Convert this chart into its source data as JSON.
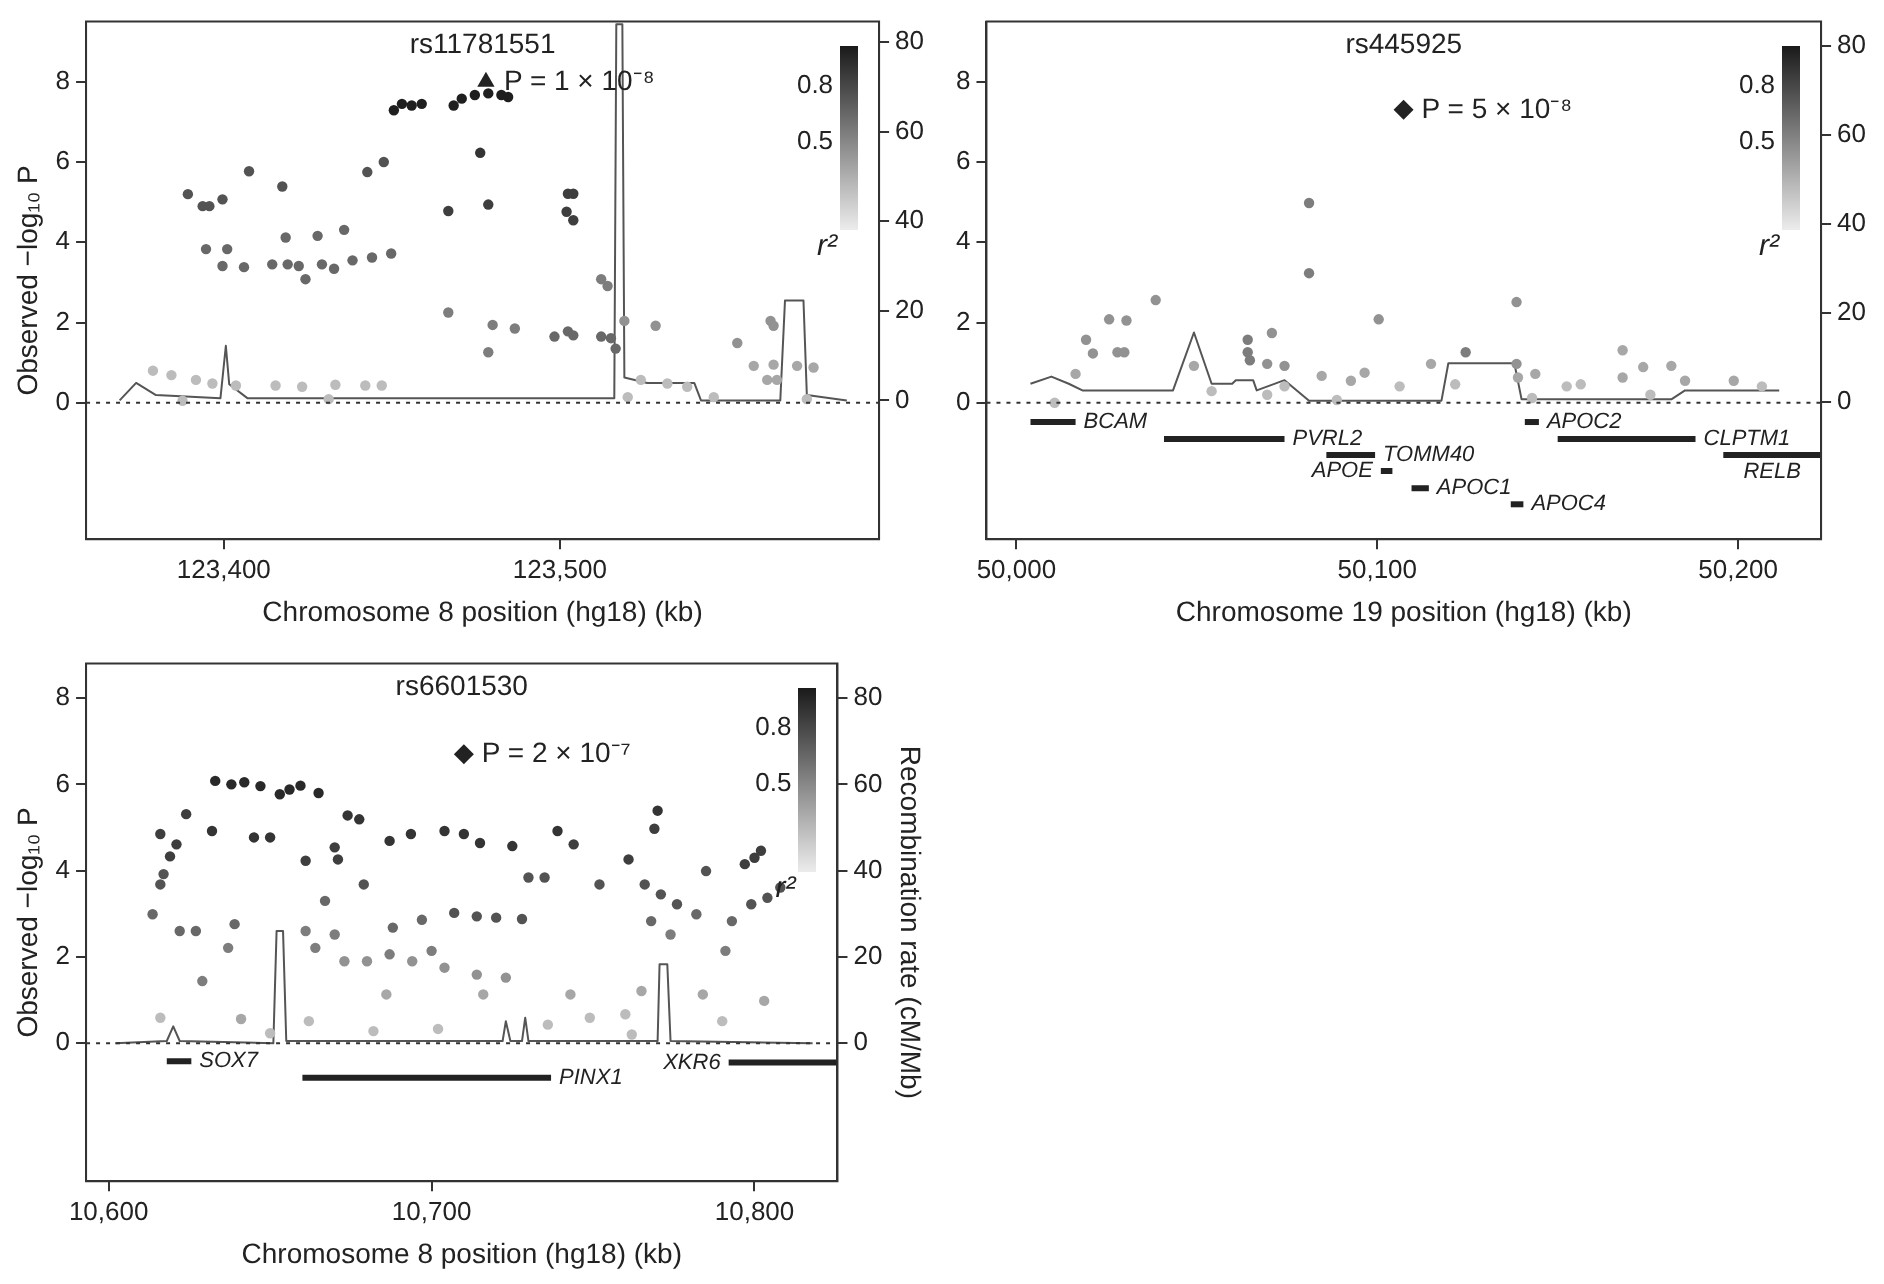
{
  "chart_data": [
    {
      "type": "scatter",
      "title": "rs11781551",
      "xlabel": "Chromosome 8 position (hg18) (kb)",
      "ylabel": "Observed −log₁₀ P",
      "annotations": [
        "0.8",
        "0.5",
        "r²"
      ],
      "xlim": [
        123359,
        123595
      ],
      "xticks": [
        {
          "value": 123400,
          "label": "123,400"
        },
        {
          "value": 123500,
          "label": "123,500"
        }
      ],
      "ylim": [
        -3.4,
        9.5
      ],
      "yticks": [
        0,
        2,
        4,
        6,
        8
      ],
      "y2lim": [
        -31,
        84.6
      ],
      "y2ticks": [
        0,
        20,
        40,
        60,
        80
      ],
      "ref_lines": [
        {
          "axis": "y",
          "value": 0,
          "line_style": "dotted"
        }
      ],
      "series": [
        {
          "type": "scatter",
          "marker": "circle",
          "x": [
            123389.3,
            123393.7,
            123395.7,
            123399.6,
            123407.5,
            123417.4,
            123394.7,
            123401,
            123399.6,
            123406,
            123414.4,
            123419,
            123422.3,
            123424.3,
            123418.4,
            123427.9,
            123435.8,
            123429.2,
            123432.8,
            123438.3,
            123444.1,
            123449.8,
            123442.7,
            123447.6,
            123450.6,
            123453,
            123455.9,
            123458.9,
            123468.4,
            123470.8,
            123474.7,
            123478.7,
            123482.6,
            123484.6,
            123466.8,
            123476.3,
            123478.7,
            123466.8,
            123480,
            123486.6,
            123478.7,
            123502.4,
            123504,
            123502,
            123504,
            123498.4,
            123502.4,
            123504,
            123512.3,
            123514.2,
            123512.3,
            123515.2,
            123516.6,
            123519.2,
            123528.5,
            123552.8,
            123562.7,
            123563.6,
            123557.7,
            123563.6,
            123570.6,
            123575.5,
            123561.7,
            123564.6,
            123378.9,
            123384.4,
            123391.7,
            123396.6,
            123403.6,
            123415.4,
            123423.3,
            123433.2,
            123442.1,
            123447,
            123524.1,
            123532,
            123537.9,
            123545.8,
            123520.2,
            123387.7,
            123431.2,
            123573.5
          ],
          "values": [
            5.2,
            4.9,
            4.9,
            5.07,
            5.77,
            5.39,
            3.83,
            3.83,
            3.41,
            3.38,
            3.45,
            3.45,
            3.41,
            3.08,
            4.12,
            4.16,
            4.31,
            3.45,
            3.34,
            3.55,
            3.62,
            3.72,
            5.75,
            6.0,
            7.29,
            7.45,
            7.41,
            7.45,
            7.41,
            7.58,
            7.67,
            7.71,
            7.67,
            7.62,
            4.78,
            6.23,
            4.94,
            2.25,
            1.94,
            1.85,
            1.26,
            5.21,
            5.21,
            4.76,
            4.55,
            1.65,
            1.78,
            1.68,
            3.08,
            2.91,
            1.65,
            1.61,
            1.35,
            2.04,
            1.92,
            1.49,
            2.04,
            1.92,
            0.92,
            0.95,
            0.92,
            0.88,
            0.57,
            0.57,
            0.8,
            0.69,
            0.57,
            0.48,
            0.43,
            0.43,
            0.4,
            0.45,
            0.43,
            0.43,
            0.57,
            0.48,
            0.4,
            0.14,
            0.14,
            0.05,
            0.09,
            0.09
          ],
          "colors": [
            "#535353",
            "#535353",
            "#535353",
            "#535353",
            "#535353",
            "#535353",
            "#686868",
            "#686868",
            "#686868",
            "#686868",
            "#686868",
            "#686868",
            "#686868",
            "#686868",
            "#686868",
            "#686868",
            "#686868",
            "#686868",
            "#686868",
            "#686868",
            "#686868",
            "#686868",
            "#535353",
            "#535353",
            "#1f1f1f",
            "#1f1f1f",
            "#1f1f1f",
            "#1f1f1f",
            "#1f1f1f",
            "#1f1f1f",
            "#1f1f1f",
            "#1f1f1f",
            "#1f1f1f",
            "#1f1f1f",
            "#3e3e3e",
            "#343434",
            "#3e3e3e",
            "#7d7d7d",
            "#7d7d7d",
            "#7d7d7d",
            "#7d7d7d",
            "#3e3e3e",
            "#3e3e3e",
            "#3e3e3e",
            "#3e3e3e",
            "#686868",
            "#686868",
            "#686868",
            "#7d7d7d",
            "#7d7d7d",
            "#686868",
            "#686868",
            "#686868",
            "#929292",
            "#929292",
            "#929292",
            "#929292",
            "#929292",
            "#a7a7a7",
            "#a7a7a7",
            "#a7a7a7",
            "#a7a7a7",
            "#a7a7a7",
            "#a7a7a7",
            "#bcbcbc",
            "#bcbcbc",
            "#bcbcbc",
            "#bcbcbc",
            "#bcbcbc",
            "#bcbcbc",
            "#bcbcbc",
            "#bcbcbc",
            "#bcbcbc",
            "#bcbcbc",
            "#bcbcbc",
            "#bcbcbc",
            "#bcbcbc",
            "#bcbcbc",
            "#bcbcbc",
            "#bcbcbc",
            "#bcbcbc",
            "#bcbcbc"
          ]
        },
        {
          "type": "scatter",
          "name": "P = 1 × 10⁻⁸",
          "marker": "triangle",
          "color": "#222222",
          "x": [
            123478
          ],
          "values": [
            8
          ]
        },
        {
          "type": "line",
          "axis": "y2",
          "color": "#555555",
          "x": [
            123369,
            123373.9,
            123379.8,
            123399,
            123400.6,
            123401.6,
            123407,
            123516.2,
            123516.8,
            123518.6,
            123519.2,
            123526,
            123540,
            123542,
            123565.6,
            123567,
            123572.5,
            123573.5,
            123585.4
          ],
          "values": [
            0,
            3.9,
            1.2,
            0.5,
            12.2,
            3.6,
            0.5,
            0.5,
            84,
            84,
            5.1,
            3.9,
            3.9,
            0,
            0,
            22.3,
            22.3,
            1.2,
            0
          ]
        }
      ]
    },
    {
      "type": "scatter",
      "title": "rs445925",
      "xlabel": "Chromosome 19 position (hg18) (kb)",
      "annotations": [
        "0.8",
        "0.5",
        "r²"
      ],
      "xlim": [
        49991.7,
        50223
      ],
      "xticks": [
        {
          "value": 50000,
          "label": "50,000"
        },
        {
          "value": 50100,
          "label": "50,100"
        },
        {
          "value": 50200,
          "label": "50,200"
        }
      ],
      "ylim": [
        -3.4,
        9.5
      ],
      "yticks": [
        0,
        2,
        4,
        6,
        8
      ],
      "y2lim": [
        -30.8,
        85.4
      ],
      "y2ticks": [
        0,
        20,
        40,
        60,
        80
      ],
      "ref_lines": [
        {
          "axis": "y",
          "value": 0,
          "line_style": "dotted"
        }
      ],
      "series": [
        {
          "type": "scatter",
          "marker": "circle",
          "x": [
            50081.1,
            50081.1,
            50038.6,
            50025.7,
            50030.5,
            50019.3,
            50021.2,
            50028,
            50029.9,
            50100.4,
            50138.6,
            50070.8,
            50064.1,
            50064.1,
            50064.7,
            50069.5,
            50074.3,
            50124.5,
            50114.9,
            50138.6,
            50139,
            50143.8,
            50168,
            50173.7,
            50181.5,
            50185.3,
            50168,
            50198.8,
            50084.6,
            50092.7,
            50096.5,
            50106.2,
            50121.6,
            50049.2,
            50054.1,
            50074.3,
            50016.4,
            50152.5,
            50156.4,
            50206.6,
            50088.8,
            50069.5,
            50010.6,
            50142.9,
            50175.7
          ],
          "values": [
            4.98,
            3.23,
            2.56,
            2.08,
            2.05,
            1.57,
            1.23,
            1.26,
            1.26,
            2.08,
            2.51,
            1.74,
            1.57,
            1.26,
            1.06,
            0.97,
            0.92,
            1.26,
            0.97,
            0.97,
            0.63,
            0.72,
            1.31,
            0.89,
            0.92,
            0.55,
            0.63,
            0.55,
            0.67,
            0.55,
            0.75,
            0.41,
            0.46,
            0.92,
            0.29,
            0.41,
            0.72,
            0.41,
            0.46,
            0.41,
            0.07,
            0.2,
            0,
            0.12,
            0.2
          ],
          "colors": [
            "#7d7d7d",
            "#7d7d7d",
            "#929292",
            "#929292",
            "#929292",
            "#929292",
            "#929292",
            "#929292",
            "#929292",
            "#929292",
            "#929292",
            "#929292",
            "#7d7d7d",
            "#7d7d7d",
            "#7d7d7d",
            "#929292",
            "#929292",
            "#7d7d7d",
            "#a7a7a7",
            "#929292",
            "#a7a7a7",
            "#a7a7a7",
            "#a7a7a7",
            "#a7a7a7",
            "#a7a7a7",
            "#a7a7a7",
            "#a7a7a7",
            "#a7a7a7",
            "#a7a7a7",
            "#a7a7a7",
            "#a7a7a7",
            "#bcbcbc",
            "#bcbcbc",
            "#a7a7a7",
            "#bcbcbc",
            "#bcbcbc",
            "#a7a7a7",
            "#bcbcbc",
            "#bcbcbc",
            "#bcbcbc",
            "#bcbcbc",
            "#bcbcbc",
            "#bcbcbc",
            "#bcbcbc",
            "#bcbcbc"
          ]
        },
        {
          "type": "scatter",
          "name": "P = 5 × 10⁻⁸",
          "marker": "diamond",
          "color": "#222222",
          "x": [
            50107.3
          ],
          "values": [
            7.3
          ]
        },
        {
          "type": "line",
          "axis": "y2",
          "color": "#555555",
          "x": [
            50003.9,
            50009.7,
            50014.5,
            50018.3,
            50043.4,
            50049.2,
            50054.1,
            50059.8,
            50060.8,
            50065.6,
            50066.6,
            50074.3,
            50081.1,
            50117.8,
            50119.7,
            50138,
            50140,
            50181.5,
            50185.3,
            50211.4
          ],
          "values": [
            4.1,
            5.7,
            4.1,
            2.6,
            2.6,
            15.6,
            4.1,
            4.1,
            4.9,
            4.9,
            2.6,
            4.9,
            0.3,
            0.3,
            8.7,
            8.7,
            0.6,
            0.6,
            2.6,
            2.6
          ]
        },
        {
          "type": "line",
          "name": "BCAM",
          "color": "#222222",
          "x": [
            50003.9,
            50016.4
          ],
          "values": [
            -0.48,
            -0.48
          ]
        },
        {
          "type": "line",
          "name": "PVRL2",
          "color": "#222222",
          "x": [
            50040.9,
            50074.3
          ],
          "values": [
            -0.9,
            -0.9
          ]
        },
        {
          "type": "line",
          "name": "TOMM40",
          "color": "#222222",
          "x": [
            50085.9,
            50099.4
          ],
          "values": [
            -1.3,
            -1.3
          ]
        },
        {
          "type": "line",
          "name": "APOE",
          "color": "#222222",
          "x": [
            50101,
            50104.2
          ],
          "values": [
            -1.7,
            -1.7
          ]
        },
        {
          "type": "line",
          "name": "APOC1",
          "color": "#222222",
          "x": [
            50109.5,
            50114.3
          ],
          "values": [
            -2.13,
            -2.13
          ]
        },
        {
          "type": "line",
          "name": "APOC2",
          "color": "#222222",
          "x": [
            50140.9,
            50144.8
          ],
          "values": [
            -0.48,
            -0.48
          ]
        },
        {
          "type": "line",
          "name": "APOC4",
          "color": "#222222",
          "x": [
            50137,
            50140.5
          ],
          "values": [
            -2.53,
            -2.53
          ]
        },
        {
          "type": "line",
          "name": "CLPTM1",
          "color": "#222222",
          "x": [
            50150,
            50188.2
          ],
          "values": [
            -0.9,
            -0.9
          ]
        },
        {
          "type": "line",
          "name": "RELB",
          "color": "#222222",
          "x": [
            50195.9,
            50223
          ],
          "values": [
            -1.3,
            -1.3
          ]
        }
      ]
    },
    {
      "type": "scatter",
      "title": "rs6601530",
      "xlabel": "Chromosome 8 position (hg18) (kb)",
      "ylabel": "Observed −log₁₀ P",
      "y2label": "Recombination rate (cM/Mb)",
      "annotations": [
        "0.8",
        "0.5",
        "r²"
      ],
      "xlim": [
        10593,
        10825.7
      ],
      "xticks": [
        {
          "value": 10600,
          "label": "10,600"
        },
        {
          "value": 10700,
          "label": "10,700"
        },
        {
          "value": 10800,
          "label": "10,800"
        }
      ],
      "ylim": [
        -3.2,
        8.8
      ],
      "yticks": [
        0,
        2,
        4,
        6,
        8
      ],
      "y2lim": [
        -32,
        88
      ],
      "y2ticks": [
        0,
        20,
        40,
        60,
        80
      ],
      "ref_lines": [
        {
          "axis": "y",
          "value": 0,
          "line_style": "dotted"
        }
      ],
      "series": [
        {
          "type": "scatter",
          "marker": "circle",
          "x": [
            10633,
            10638,
            10642,
            10647,
            10653,
            10656,
            10659.4,
            10665,
            10632,
            10645,
            10650,
            10624,
            10616,
            10621,
            10619,
            10616,
            10617,
            10613.6,
            10622,
            10627,
            10629,
            10639,
            10637,
            10641,
            10661,
            10667,
            10670,
            10671,
            10674,
            10677.6,
            10679,
            10661,
            10664,
            10670,
            10673,
            10680,
            10687,
            10693.6,
            10704,
            10710,
            10715,
            10725,
            10707,
            10714,
            10720,
            10728,
            10687,
            10694,
            10700,
            10688,
            10697,
            10704,
            10714,
            10723,
            10716,
            10686,
            10739,
            10744,
            10730,
            10735,
            10752,
            10761,
            10766,
            10770,
            10769,
            10771,
            10776,
            10782,
            10785,
            10768,
            10774,
            10765,
            10743,
            10791,
            10793,
            10797,
            10800,
            10802,
            10799,
            10804,
            10808,
            10784,
            10803,
            10790,
            10616,
            10662,
            10682,
            10702,
            10749,
            10760,
            10762,
            10736,
            10650
          ],
          "values": [
            6.08,
            6.0,
            6.05,
            5.96,
            5.77,
            5.88,
            5.97,
            5.8,
            4.92,
            4.77,
            4.77,
            5.31,
            4.85,
            4.61,
            4.33,
            3.68,
            3.92,
            2.99,
            2.6,
            2.6,
            1.44,
            2.76,
            2.21,
            0.56,
            4.23,
            3.3,
            4.54,
            4.26,
            5.28,
            5.19,
            3.68,
            2.6,
            2.21,
            2.52,
            1.9,
            1.9,
            4.69,
            4.85,
            4.92,
            4.85,
            4.64,
            4.57,
            3.02,
            2.94,
            2.91,
            2.88,
            2.06,
            1.9,
            2.14,
            2.68,
            2.86,
            1.75,
            1.59,
            1.52,
            1.13,
            1.13,
            4.92,
            4.61,
            3.84,
            3.84,
            3.68,
            4.26,
            3.68,
            5.39,
            4.97,
            3.45,
            3.22,
            2.99,
            3.99,
            2.83,
            2.52,
            1.21,
            1.13,
            2.14,
            2.83,
            4.15,
            4.3,
            4.46,
            3.22,
            3.37,
            3.61,
            1.13,
            0.98,
            0.51,
            0.59,
            0.51,
            0.28,
            0.33,
            0.59,
            0.67,
            0.2,
            0.43,
            0.23
          ],
          "colors": [
            "#292929",
            "#292929",
            "#292929",
            "#292929",
            "#292929",
            "#292929",
            "#292929",
            "#292929",
            "#343434",
            "#343434",
            "#343434",
            "#3e3e3e",
            "#3e3e3e",
            "#3e3e3e",
            "#3e3e3e",
            "#535353",
            "#535353",
            "#686868",
            "#686868",
            "#686868",
            "#7d7d7d",
            "#686868",
            "#7d7d7d",
            "#a7a7a7",
            "#3e3e3e",
            "#686868",
            "#3e3e3e",
            "#3e3e3e",
            "#343434",
            "#343434",
            "#535353",
            "#7d7d7d",
            "#7d7d7d",
            "#7d7d7d",
            "#929292",
            "#929292",
            "#343434",
            "#343434",
            "#343434",
            "#343434",
            "#343434",
            "#343434",
            "#535353",
            "#535353",
            "#535353",
            "#535353",
            "#7d7d7d",
            "#929292",
            "#7d7d7d",
            "#686868",
            "#686868",
            "#929292",
            "#929292",
            "#929292",
            "#a7a7a7",
            "#a7a7a7",
            "#343434",
            "#3e3e3e",
            "#535353",
            "#535353",
            "#535353",
            "#3e3e3e",
            "#535353",
            "#343434",
            "#3e3e3e",
            "#535353",
            "#535353",
            "#686868",
            "#535353",
            "#686868",
            "#7d7d7d",
            "#a7a7a7",
            "#a7a7a7",
            "#7d7d7d",
            "#686868",
            "#3e3e3e",
            "#3e3e3e",
            "#3e3e3e",
            "#535353",
            "#535353",
            "#535353",
            "#a7a7a7",
            "#a7a7a7",
            "#bcbcbc",
            "#bcbcbc",
            "#bcbcbc",
            "#bcbcbc",
            "#bcbcbc",
            "#bcbcbc",
            "#bcbcbc",
            "#bcbcbc",
            "#bcbcbc",
            "#bcbcbc"
          ]
        },
        {
          "type": "scatter",
          "name": "P = 2 × 10⁻⁷",
          "marker": "diamond",
          "color": "#222222",
          "x": [
            10710
          ],
          "values": [
            6.7
          ]
        },
        {
          "type": "line",
          "axis": "y2",
          "color": "#555555",
          "x": [
            10602,
            10618,
            10620,
            10622,
            10651,
            10652,
            10654,
            10655,
            10722,
            10723,
            10724.4,
            10728,
            10729,
            10730,
            10770,
            10770.6,
            10773,
            10774,
            10818
          ],
          "values": [
            0,
            0.5,
            3.9,
            0.5,
            0,
            26,
            26,
            0.5,
            0.5,
            5.1,
            0.5,
            0.5,
            5.9,
            0.5,
            0.5,
            18.3,
            18.3,
            0.5,
            0
          ]
        },
        {
          "type": "line",
          "name": "SOX7",
          "color": "#222222",
          "x": [
            10618,
            10625.6
          ],
          "values": [
            -0.42,
            -0.42
          ]
        },
        {
          "type": "line",
          "name": "PINX1",
          "color": "#222222",
          "x": [
            10660,
            10737
          ],
          "values": [
            -0.8,
            -0.8
          ]
        },
        {
          "type": "line",
          "name": "XKR6",
          "color": "#222222",
          "x": [
            10792,
            10825.7
          ],
          "values": [
            -0.45,
            -0.45
          ]
        }
      ]
    }
  ]
}
